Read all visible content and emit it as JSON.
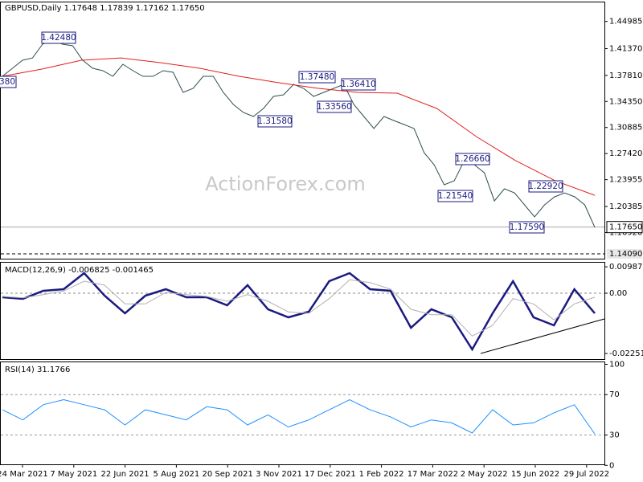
{
  "chart_data": [
    {
      "type": "line",
      "title": "GBPUSD,Daily  1.17648 1.17839 1.17162 1.17650",
      "watermark": "ActionForex.com",
      "ylim": [
        1.1345,
        1.473
      ],
      "yticks": [
        1.44985,
        {
          "value": 1.4137,
          "label": "1.41370"
        },
        {
          "value": 1.3781,
          "label": "1.37810"
        },
        {
          "value": 1.3435,
          "label": "1.34350"
        },
        1.30885,
        {
          "value": 1.2742,
          "label": "1.27420"
        },
        1.23955,
        1.20385,
        {
          "value": 1.1692,
          "label": "1.16920"
        }
      ],
      "last_price": {
        "value": 1.1765,
        "label": "1.17650"
      },
      "support_level": {
        "value": 1.1409,
        "label": "1.14090"
      },
      "annotations": [
        "380",
        "1.42480",
        "1.37480",
        "1.36410",
        "1.33560",
        "1.31580",
        "1.26660",
        "1.21540",
        "1.22920",
        "1.17590"
      ],
      "series": [
        {
          "name": "GBPUSD",
          "color": "#2f4f4f",
          "values": [
            1.3769,
            1.3876,
            1.3982,
            1.4014,
            1.4196,
            1.4249,
            1.4196,
            1.4175,
            1.3982,
            1.3876,
            1.3844,
            1.3769,
            1.3929,
            1.3844,
            1.3769,
            1.3769,
            1.3844,
            1.3822,
            1.3555,
            1.3609,
            1.3769,
            1.3769,
            1.3555,
            1.3395,
            1.3288,
            1.3235,
            1.3342,
            1.3502,
            1.3523,
            1.3662,
            1.3609,
            1.3502,
            1.3555,
            1.3609,
            1.3662,
            1.3395,
            1.3235,
            1.3075,
            1.3235,
            1.3181,
            1.3128,
            1.3075,
            1.2754,
            1.2594,
            1.2327,
            1.238,
            1.2647,
            1.2594,
            1.2487,
            1.2113,
            1.2274,
            1.222,
            1.206,
            1.19,
            1.206,
            1.2167,
            1.222,
            1.2167,
            1.206,
            1.1761
          ]
        },
        {
          "name": "MA",
          "color": "#e0201b",
          "values": [
            1.3769,
            1.3865,
            1.3982,
            1.4014,
            1.395,
            1.3876,
            1.3769,
            1.3683,
            1.3609,
            1.3555,
            1.3545,
            1.3342,
            1.2968,
            1.2647,
            1.238,
            1.2188
          ]
        }
      ]
    },
    {
      "type": "line",
      "title": "MACD(12,26,9) -0.006825 -0.001465",
      "ylim": [
        -0.0246,
        0.0114
      ],
      "yticks": [
        0.009872,
        {
          "value": 0,
          "label": "0.00"
        },
        -0.022516
      ],
      "series": [
        {
          "name": "MACD",
          "color": "#1a1a80",
          "values": [
            -0.0015,
            -0.0021,
            0.0009,
            0.0015,
            0.0075,
            -0.0009,
            -0.0075,
            -0.0009,
            0.0015,
            -0.0015,
            -0.0015,
            -0.0045,
            0.003,
            -0.006,
            -0.009,
            -0.0069,
            0.0045,
            0.0075,
            0.0015,
            0.0009,
            -0.0129,
            -0.006,
            -0.009,
            -0.021,
            -0.0075,
            0.0045,
            -0.009,
            -0.012,
            0.0015,
            -0.0075
          ]
        },
        {
          "name": "Signal",
          "color": "#b0b0b0",
          "values": [
            -0.0012,
            -0.0017,
            -0.0005,
            0.0008,
            0.0045,
            0.003,
            -0.004,
            -0.004,
            0.0003,
            -0.0005,
            -0.0012,
            -0.003,
            -0.0005,
            -0.003,
            -0.007,
            -0.0075,
            -0.002,
            0.005,
            0.004,
            0.0015,
            -0.006,
            -0.008,
            -0.008,
            -0.016,
            -0.012,
            -0.002,
            -0.004,
            -0.01,
            -0.004,
            -0.0015
          ]
        }
      ]
    },
    {
      "type": "line",
      "title": "RSI(14) 31.1766",
      "ylim": [
        1,
        102
      ],
      "yticks": [
        100,
        70,
        30,
        0
      ],
      "levels": [
        70,
        30
      ],
      "series": [
        {
          "name": "RSI",
          "color": "#1e90ff",
          "values": [
            55,
            45,
            60,
            65,
            60,
            55,
            40,
            55,
            50,
            45,
            58,
            55,
            40,
            50,
            38,
            45,
            55,
            65,
            55,
            48,
            38,
            45,
            42,
            32,
            55,
            40,
            42,
            52,
            60,
            31.1766
          ]
        }
      ]
    }
  ],
  "x_axis_labels": [
    "24 Mar 2021",
    "7 May 2021",
    "22 Jun 2021",
    "5 Aug 2021",
    "20 Sep 2021",
    "3 Nov 2021",
    "17 Dec 2021",
    "1 Feb 2022",
    "17 Mar 2022",
    "2 May 2022",
    "15 Jun 2022",
    "29 Jul 2022"
  ]
}
